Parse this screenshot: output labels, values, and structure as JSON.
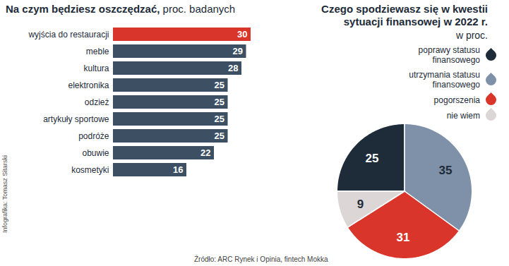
{
  "chart_data": [
    {
      "type": "bar",
      "title": "Na czym będziesz oszczędzać,",
      "subtitle": "proc. badanych",
      "orientation": "horizontal",
      "categories": [
        "wyjścia do restauracji",
        "meble",
        "kultura",
        "elektronika",
        "odzież",
        "artykuły sportowe",
        "podróże",
        "obuwie",
        "kosmetyki"
      ],
      "values": [
        30,
        29,
        28,
        25,
        25,
        25,
        25,
        22,
        16
      ],
      "colors": [
        "#d9352a",
        "#3d4f62",
        "#3d4f62",
        "#3d4f62",
        "#3d4f62",
        "#3d4f62",
        "#3d4f62",
        "#3d4f62",
        "#3d4f62"
      ],
      "xlim": [
        0,
        30
      ],
      "data_labels": true,
      "tick_labels": "y"
    },
    {
      "type": "pie",
      "title": "Czego spodziewasz się w kwestii sytuacji finansowej w 2022 r.",
      "subtitle": "w proc.",
      "categories": [
        "poprawy statusu finansowego",
        "utrzymania statusu finansowego",
        "pogorszenia",
        "nie wiem"
      ],
      "values": [
        25,
        35,
        31,
        9
      ],
      "colors": [
        "#1e2b38",
        "#7f91a8",
        "#d9352a",
        "#dcd6d6"
      ],
      "data_labels": true,
      "legend": "top-right"
    }
  ],
  "credit": "Infografika: Tomasz Sitarski",
  "source": "Źródło: ARC Rynek i Opinia, fintech Mokka"
}
